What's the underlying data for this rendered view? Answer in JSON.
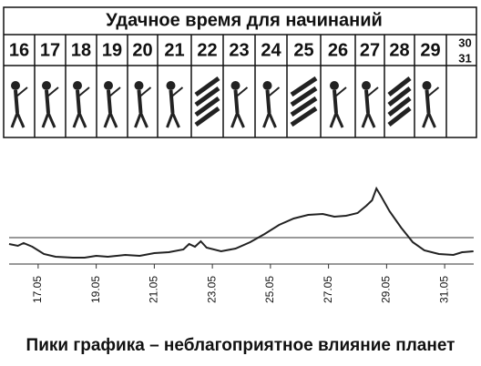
{
  "header": {
    "title": "Удачное время для начинаний"
  },
  "days": [
    "16",
    "17",
    "18",
    "19",
    "20",
    "21",
    "22",
    "23",
    "24",
    "25",
    "26",
    "27",
    "28",
    "29",
    "30",
    "31"
  ],
  "chart_data": {
    "type": "line",
    "x": [
      16.0,
      16.3,
      16.5,
      16.8,
      17.2,
      17.6,
      18.2,
      18.6,
      19.0,
      19.4,
      20.0,
      20.5,
      21.0,
      21.5,
      22.0,
      22.2,
      22.4,
      22.6,
      22.8,
      23.3,
      23.8,
      24.3,
      24.8,
      25.3,
      25.8,
      26.3,
      26.8,
      27.2,
      27.6,
      28.0,
      28.3,
      28.5,
      28.65,
      28.8,
      29.1,
      29.5,
      29.9,
      30.3,
      30.8,
      31.3,
      31.6,
      31.99
    ],
    "series": [
      {
        "color": "#222222",
        "values": [
          17,
          15,
          18,
          14,
          6,
          3,
          2,
          2,
          4,
          3,
          5,
          4,
          7,
          8,
          11,
          17,
          14,
          20,
          13,
          9,
          12,
          19,
          28,
          38,
          45,
          49,
          50,
          47,
          48,
          51,
          59,
          65,
          78,
          70,
          53,
          35,
          19,
          10,
          6,
          5,
          8,
          9
        ]
      }
    ],
    "xlim": [
      16,
      32
    ],
    "ylim": [
      0,
      100
    ],
    "xticks": [
      {
        "value": 17,
        "label": "17.05"
      },
      {
        "value": 19,
        "label": "19.05"
      },
      {
        "value": 21,
        "label": "21.05"
      },
      {
        "value": 23,
        "label": "23.05"
      },
      {
        "value": 25,
        "label": "25.05"
      },
      {
        "value": 27,
        "label": "27.05"
      },
      {
        "value": 29,
        "label": "29.05"
      },
      {
        "value": 31,
        "label": "31.05"
      }
    ],
    "caption": "Пики графика – неблагоприятное влияние планет"
  }
}
